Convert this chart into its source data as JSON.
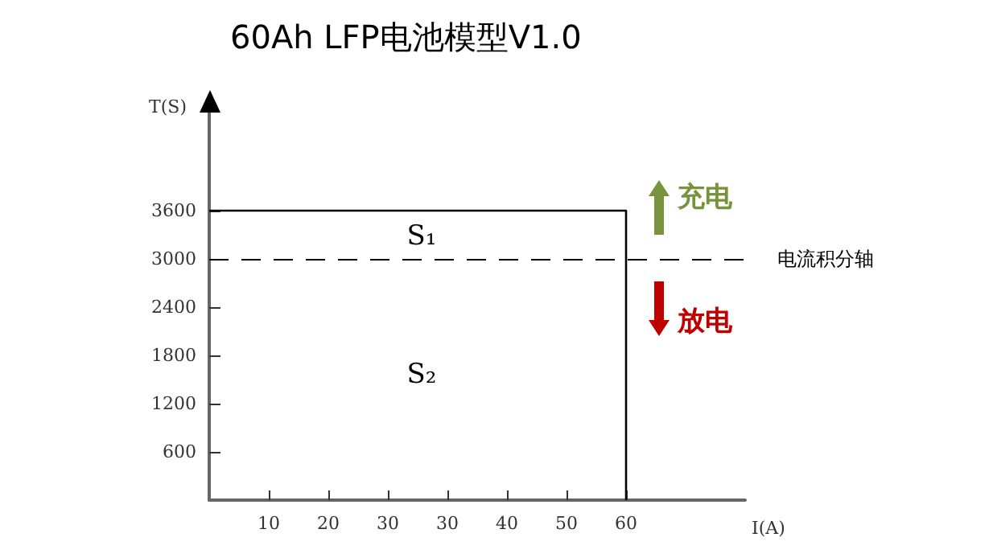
{
  "chart_data": {
    "type": "step",
    "title": "60Ah LFP电池模型V1.0",
    "xlabel": "I(A)",
    "ylabel": "T(S)",
    "categories": [
      null,
      "10",
      "20",
      "30",
      "30",
      "40",
      "50",
      "60",
      null,
      null
    ],
    "series": [
      {
        "color": "#000000",
        "values": [
          3600,
          3600,
          3600,
          3600,
          3600,
          3600,
          3600,
          0,
          null,
          null
        ]
      }
    ],
    "ylim": [
      0,
      4900
    ],
    "yticks": [
      600,
      1200,
      1800,
      2400,
      3000,
      3600
    ],
    "ref_lines": [
      {
        "axis": "y",
        "value": 3000,
        "label": "电流积分轴",
        "color": "#000000",
        "line_style": "dashed"
      }
    ],
    "annotations": [
      "S₁",
      "S₂",
      "充电",
      "放电"
    ],
    "marker": "none",
    "line_style": "solid"
  }
}
